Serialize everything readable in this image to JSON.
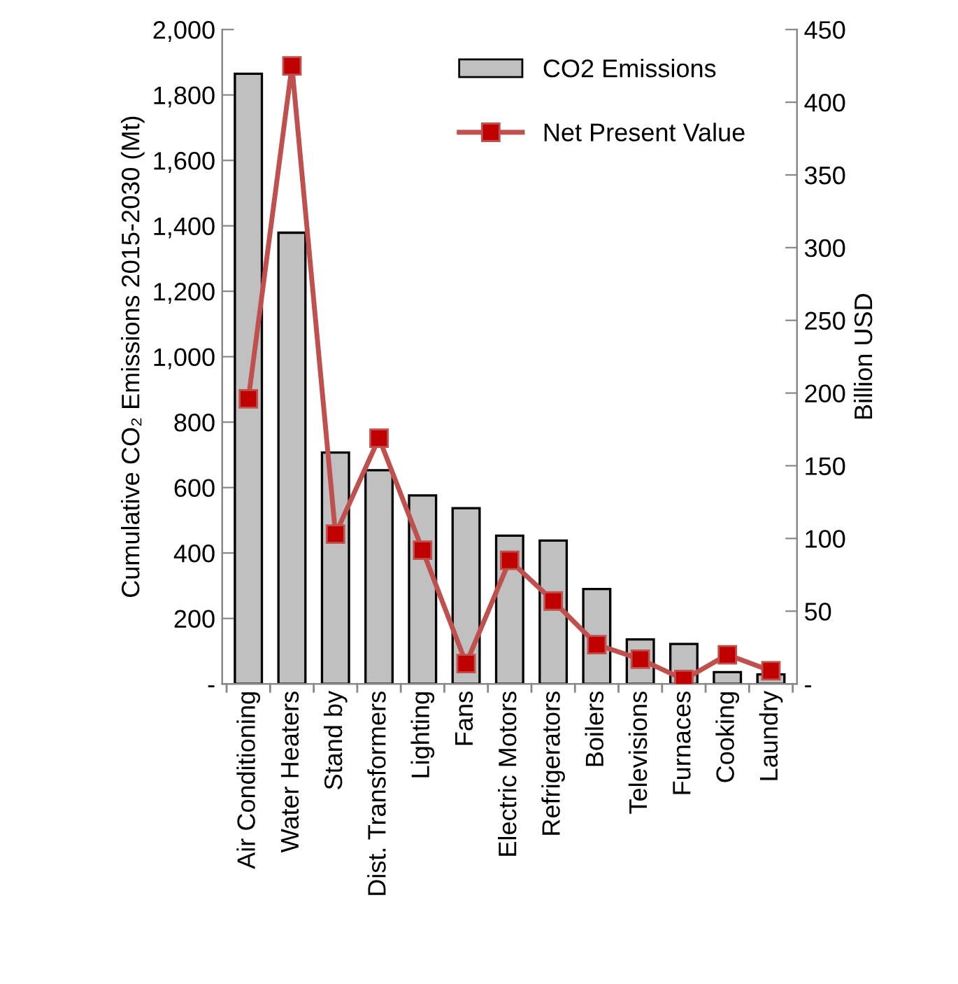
{
  "chart_data": {
    "type": "bar",
    "ylabel": "Cumulative CO₂ Emissions 2015-2030 (Mt)",
    "y2label": "Billion USD",
    "categories": [
      "Air Conditioning",
      "Water Heaters",
      "Stand by",
      "Dist. Transformers",
      "Lighting",
      "Fans",
      "Electric Motors",
      "Refrigerators",
      "Boilers",
      "Televisions",
      "Furnaces",
      "Cooking",
      "Laundry"
    ],
    "series": [
      {
        "name": "CO2 Emissions",
        "color": "#c0c0c0",
        "values": [
          1865,
          1379,
          707,
          653,
          576,
          537,
          453,
          438,
          290,
          136,
          122,
          36,
          29
        ]
      },
      {
        "name": "Net Present Value",
        "type": "line",
        "axis": "y2",
        "color": "#c0504d",
        "marker": "square",
        "values": [
          196,
          425,
          103,
          169,
          92,
          14,
          85,
          57,
          27,
          17,
          3,
          20,
          9
        ]
      }
    ],
    "ylim": [
      0,
      2000
    ],
    "yticks": [
      {
        "value": 0,
        "label": "-"
      },
      {
        "value": 200,
        "label": "200"
      },
      {
        "value": 400,
        "label": "400"
      },
      {
        "value": 600,
        "label": "600"
      },
      {
        "value": 800,
        "label": "800"
      },
      {
        "value": 1000,
        "label": "1,000"
      },
      {
        "value": 1200,
        "label": "1,200"
      },
      {
        "value": 1400,
        "label": "1,400"
      },
      {
        "value": 1600,
        "label": "1,600"
      },
      {
        "value": 1800,
        "label": "1,800"
      },
      {
        "value": 2000,
        "label": "2,000"
      }
    ],
    "y2lim": [
      0,
      450
    ],
    "y2ticks": [
      {
        "value": 0,
        "label": "-"
      },
      50,
      100,
      150,
      200,
      250,
      300,
      350,
      400,
      450
    ],
    "grid": false,
    "legend": "top right"
  }
}
